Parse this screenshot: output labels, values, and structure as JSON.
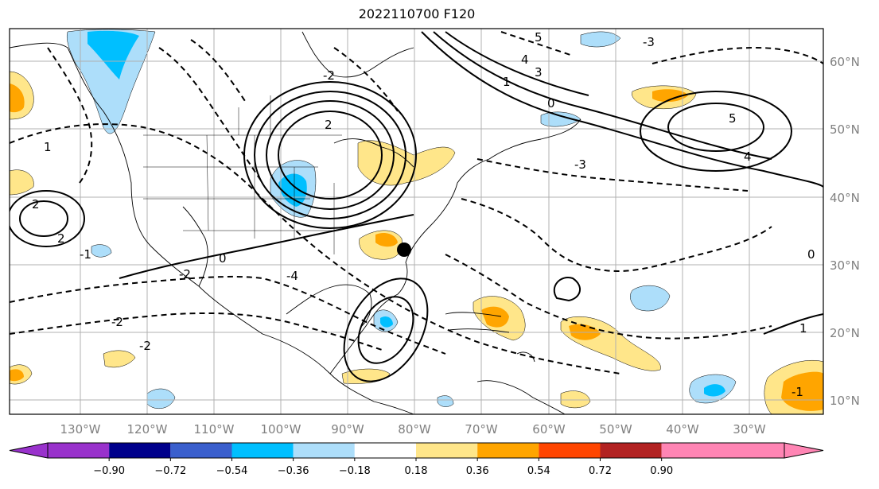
{
  "title": "2022110700 F120",
  "longitude_labels": [
    "130°W",
    "120°W",
    "110°W",
    "100°W",
    "90°W",
    "80°W",
    "70°W",
    "60°W",
    "50°W",
    "40°W",
    "30°W"
  ],
  "latitude_labels": [
    "60°N",
    "50°N",
    "40°N",
    "30°N",
    "20°N",
    "10°N"
  ],
  "colorbar": {
    "ticks": [
      "−0.90",
      "−0.72",
      "−0.54",
      "−0.36",
      "−0.18",
      "0.18",
      "0.36",
      "0.54",
      "0.72",
      "0.90"
    ],
    "colors": [
      "#9932CC",
      "#00008B",
      "#3A5FCD",
      "#00BFFF",
      "#ADDEFA",
      "#FFFFFF",
      "#FFE68A",
      "#FFA500",
      "#FF4500",
      "#B22222",
      "#FF85B4"
    ]
  },
  "contour_labels": [
    "5",
    "4",
    "3",
    "1",
    "0",
    "2",
    "-2",
    "-3",
    "2",
    "-1",
    "1",
    "-4",
    "5",
    "4",
    "-3",
    "-2",
    "0",
    "-1",
    "1",
    "0",
    "2",
    "-2",
    "-2"
  ],
  "colors": {
    "land_border": "#000000",
    "grid": "#b0b0b0",
    "axis_text": "#808080"
  }
}
